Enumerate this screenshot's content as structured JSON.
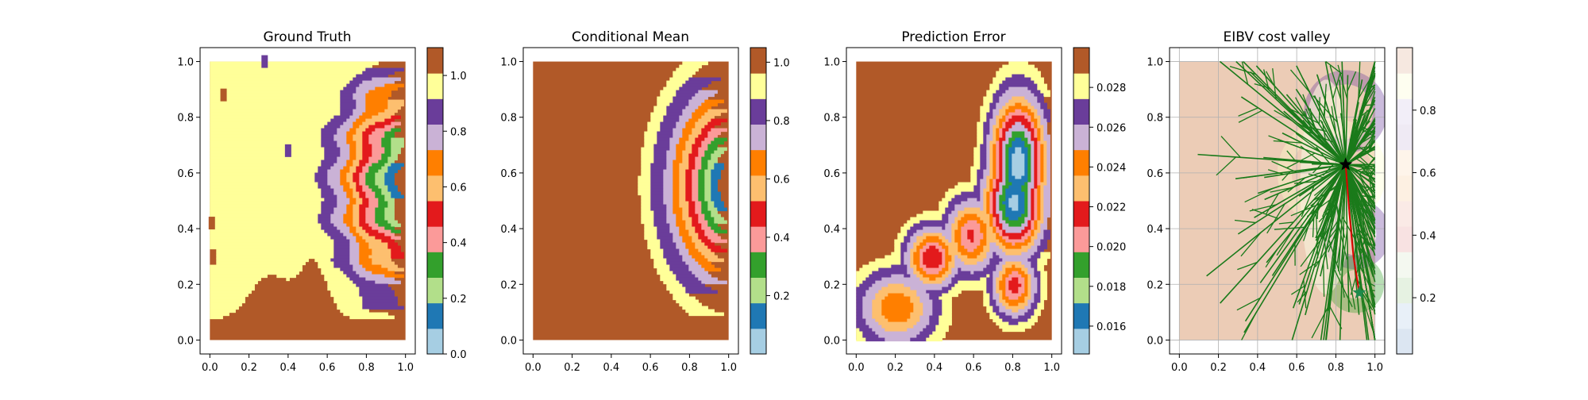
{
  "chart_data": [
    {
      "type": "heatmap",
      "title": "Ground Truth",
      "xlim": [
        -0.05,
        1.05
      ],
      "ylim": [
        -0.05,
        1.05
      ],
      "xticks": [
        "0.0",
        "0.2",
        "0.4",
        "0.6",
        "0.8",
        "1.0"
      ],
      "yticks": [
        "0.0",
        "0.2",
        "0.4",
        "0.6",
        "0.8",
        "1.0"
      ],
      "colorbar": {
        "range": [
          0.0,
          1.1
        ],
        "ticks": [
          "0.0",
          "0.2",
          "0.4",
          "0.6",
          "0.8",
          "1.0"
        ],
        "tick_values": [
          0.0,
          0.2,
          0.4,
          0.6,
          0.8,
          1.0
        ]
      }
    },
    {
      "type": "heatmap",
      "title": "Conditional Mean",
      "xlim": [
        -0.05,
        1.05
      ],
      "ylim": [
        -0.05,
        1.05
      ],
      "xticks": [
        "0.0",
        "0.2",
        "0.4",
        "0.6",
        "0.8",
        "1.0"
      ],
      "yticks": [
        "0.0",
        "0.2",
        "0.4",
        "0.6",
        "0.8",
        "1.0"
      ],
      "colorbar": {
        "range": [
          0.0,
          1.05
        ],
        "ticks": [
          "0.2",
          "0.4",
          "0.6",
          "0.8",
          "1.0"
        ],
        "tick_values": [
          0.2,
          0.4,
          0.6,
          0.8,
          1.0
        ]
      }
    },
    {
      "type": "heatmap",
      "title": "Prediction Error",
      "xlim": [
        -0.05,
        1.05
      ],
      "ylim": [
        -0.05,
        1.05
      ],
      "xticks": [
        "0.0",
        "0.2",
        "0.4",
        "0.6",
        "0.8",
        "1.0"
      ],
      "yticks": [
        "0.0",
        "0.2",
        "0.4",
        "0.6",
        "0.8",
        "1.0"
      ],
      "colorbar": {
        "range": [
          0.0146,
          0.03
        ],
        "ticks": [
          "0.016",
          "0.018",
          "0.020",
          "0.022",
          "0.024",
          "0.026",
          "0.028"
        ],
        "tick_values": [
          0.016,
          0.018,
          0.02,
          0.022,
          0.024,
          0.026,
          0.028
        ]
      }
    },
    {
      "type": "heatmap",
      "title": "EIBV cost valley",
      "xlim": [
        -0.05,
        1.05
      ],
      "ylim": [
        -0.05,
        1.05
      ],
      "xticks": [
        "0.0",
        "0.2",
        "0.4",
        "0.6",
        "0.8",
        "1.0"
      ],
      "yticks": [
        "0.0",
        "0.2",
        "0.4",
        "0.6",
        "0.8",
        "1.0"
      ],
      "grid": true,
      "markers": {
        "current": [
          0.85,
          0.63
        ],
        "target": [
          0.92,
          0.17
        ]
      },
      "colorbar": {
        "range": [
          0.02,
          1.0
        ],
        "ticks": [
          "0.2",
          "0.4",
          "0.6",
          "0.8"
        ],
        "tick_values": [
          0.2,
          0.4,
          0.6,
          0.8
        ]
      }
    }
  ],
  "colors": {
    "paired": [
      "#a6cee3",
      "#1f78b4",
      "#b2df8a",
      "#33a02c",
      "#fb9a99",
      "#e31a1c",
      "#fdbf6f",
      "#ff7f00",
      "#cab2d6",
      "#6a3d9a",
      "#ffff99",
      "#b15928"
    ],
    "tree": "#1a7a1a",
    "path": "#e00000"
  }
}
